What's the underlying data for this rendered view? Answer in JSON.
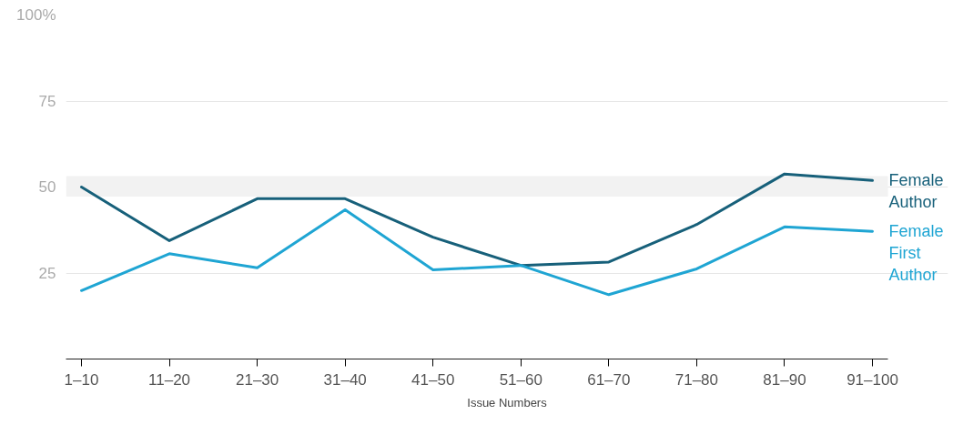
{
  "chart_data": {
    "type": "line",
    "xlabel": "Issue Numbers",
    "categories": [
      "1–10",
      "11–20",
      "21–30",
      "31–40",
      "41–50",
      "51–60",
      "61–70",
      "71–80",
      "81–90",
      "91–100"
    ],
    "series": [
      {
        "name": "Female Author",
        "color": "#17607a",
        "values": [
          50,
          34.4,
          46.6,
          46.6,
          35.4,
          27.2,
          28.2,
          39.1,
          53.8,
          51.9
        ]
      },
      {
        "name": "Female First Author",
        "color": "#1fa5d3",
        "values": [
          19.9,
          30.6,
          26.5,
          43.4,
          25.9,
          27.2,
          18.7,
          26.2,
          38.4,
          37.1
        ]
      }
    ],
    "ylim": [
      0,
      100
    ],
    "yticks": [
      {
        "value": 25,
        "label": "25"
      },
      {
        "value": 50,
        "label": "50"
      },
      {
        "value": 75,
        "label": "75"
      },
      {
        "value": 100,
        "label": "100%"
      }
    ],
    "bands": [
      {
        "axis": "y",
        "from": 47.2,
        "to": 53.2,
        "color": "#f2f2f2"
      }
    ],
    "grid": "y",
    "marker": "none",
    "line_style": "solid"
  }
}
